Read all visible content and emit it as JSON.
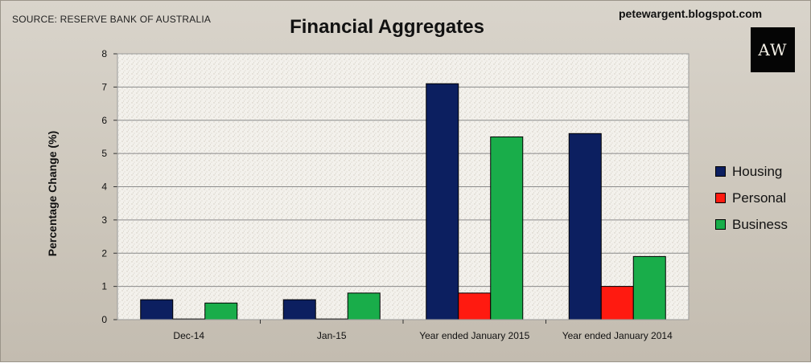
{
  "header": {
    "source": "SOURCE: RESERVE BANK OF AUSTRALIA",
    "title": "Financial Aggregates",
    "blog": "petewargent.blogspot.com",
    "logo_text": "AW"
  },
  "chart_data": {
    "type": "bar",
    "title": "Financial Aggregates",
    "xlabel": "",
    "ylabel": "Percentage Change (%)",
    "ylim": [
      0,
      8
    ],
    "yticks": [
      0,
      1,
      2,
      3,
      4,
      5,
      6,
      7,
      8
    ],
    "grid": true,
    "legend_position": "right",
    "categories": [
      "Dec-14",
      "Jan-15",
      "Year ended January 2015",
      "Year ended January 2014"
    ],
    "series": [
      {
        "name": "Housing",
        "color": "#0c1f60",
        "values": [
          0.6,
          0.6,
          7.1,
          5.6
        ]
      },
      {
        "name": "Personal",
        "color": "#ff1a10",
        "values": [
          0.02,
          0.02,
          0.8,
          1.0
        ]
      },
      {
        "name": "Business",
        "color": "#19ad4a",
        "values": [
          0.5,
          0.8,
          5.5,
          1.9
        ]
      }
    ]
  }
}
